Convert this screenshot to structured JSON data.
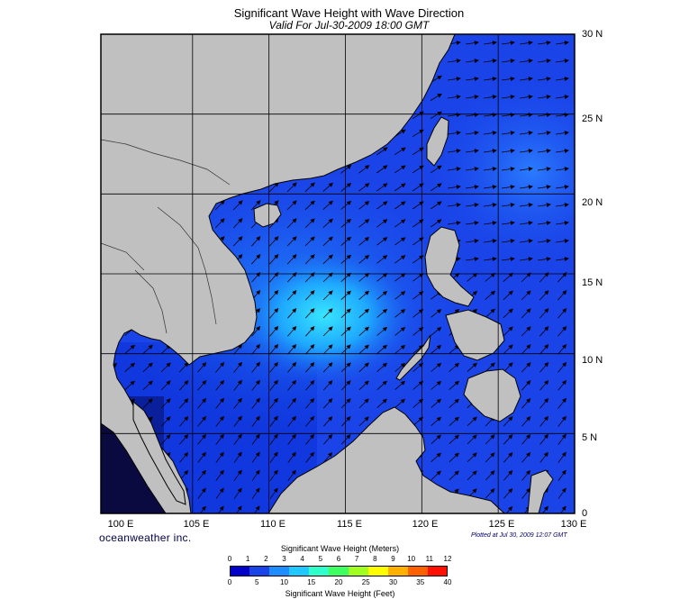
{
  "title": "Significant Wave Height with Wave Direction",
  "subtitle": "Valid For Jul-30-2009 18:00 GMT",
  "map": {
    "lon_range": [
      99,
      130
    ],
    "lat_range": [
      0,
      30
    ],
    "lat_labels": [
      "30 N",
      "25 N",
      "20 N",
      "15 N",
      "10 N",
      "5 N",
      "0"
    ],
    "lon_labels": [
      "100 E",
      "105 E",
      "110 E",
      "115 E",
      "120 E",
      "125 E",
      "130 E"
    ],
    "land_color": "#c0c0c0",
    "sea_base_color": "#1a44e8",
    "wave_direction": "southwest to northeast",
    "peak_wave_area": "central South China Sea, approx 10-15 N 110-116 E"
  },
  "brand": "oceanweather inc.",
  "plotted": "Plotted at Jul 30, 2009 12:07 GMT",
  "colorbar": {
    "meters_title": "Significant Wave Height (Meters)",
    "feet_title": "Significant Wave Height (Feet)",
    "meters_ticks": [
      "0",
      "1",
      "2",
      "3",
      "4",
      "5",
      "6",
      "7",
      "8",
      "9",
      "10",
      "11",
      "12"
    ],
    "feet_ticks": [
      "0",
      "5",
      "10",
      "15",
      "20",
      "25",
      "30",
      "35",
      "40"
    ],
    "colors": [
      "#0000c8",
      "#1a44e8",
      "#1f8cff",
      "#20c8ff",
      "#30ffcc",
      "#40ff60",
      "#a0ff20",
      "#ffff00",
      "#ffb000",
      "#ff6000",
      "#ff1000"
    ]
  }
}
